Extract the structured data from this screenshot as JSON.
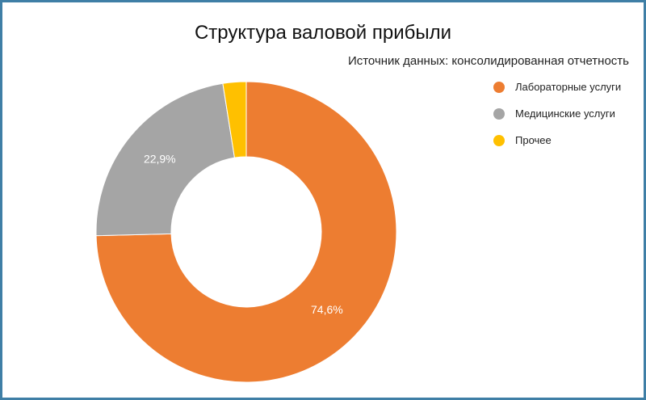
{
  "chart_data": {
    "type": "pie",
    "variant": "donut",
    "title": "Структура валовой прибыли",
    "subtitle": "Источник данных: консолидированная отчетность",
    "legend_position": "top-right",
    "series": [
      {
        "name": "Лабораторные услуги",
        "value": 74.6,
        "label": "74,6%",
        "color": "#ed7d31"
      },
      {
        "name": "Медицинские услуги",
        "value": 22.9,
        "label": "22,9%",
        "color": "#a5a5a5"
      },
      {
        "name": "Прочее",
        "value": 2.5,
        "label": "",
        "color": "#ffc000"
      }
    ]
  },
  "colors": {
    "border": "#3f7fa6",
    "background": "#ffffff"
  }
}
